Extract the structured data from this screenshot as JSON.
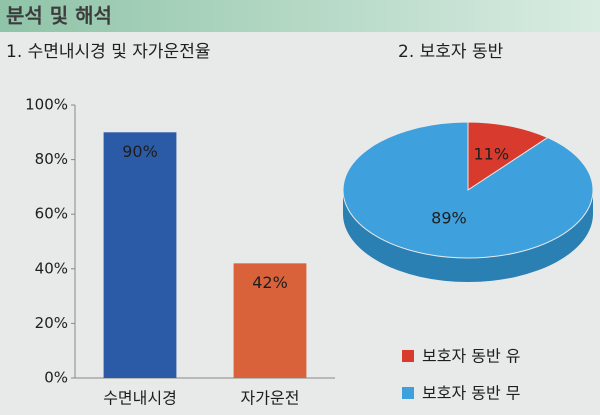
{
  "header": {
    "title": "분석 및 해석"
  },
  "chart_data": [
    {
      "type": "bar",
      "title": "1. 수면내시경 및 자가운전율",
      "categories": [
        "수면내시경",
        "자가운전"
      ],
      "values": [
        90,
        42
      ],
      "value_labels": [
        "90%",
        "42%"
      ],
      "colors": [
        "#2b5aa6",
        "#d9623b"
      ],
      "ylim": [
        0,
        100
      ],
      "yticks": [
        {
          "value": 0,
          "label": "0%"
        },
        {
          "value": 20,
          "label": "20%"
        },
        {
          "value": 40,
          "label": "40%"
        },
        {
          "value": 60,
          "label": "60%"
        },
        {
          "value": 80,
          "label": "80%"
        },
        {
          "value": 100,
          "label": "100%"
        }
      ]
    },
    {
      "type": "pie",
      "title": "2. 보호자 동반",
      "categories": [
        "보호자 동반 유",
        "보호자 동반 무"
      ],
      "values": [
        11,
        89
      ],
      "value_labels": [
        "11%",
        "89%"
      ],
      "colors": [
        "#d83a2e",
        "#3ea0dc"
      ],
      "legend": "bottom"
    }
  ]
}
